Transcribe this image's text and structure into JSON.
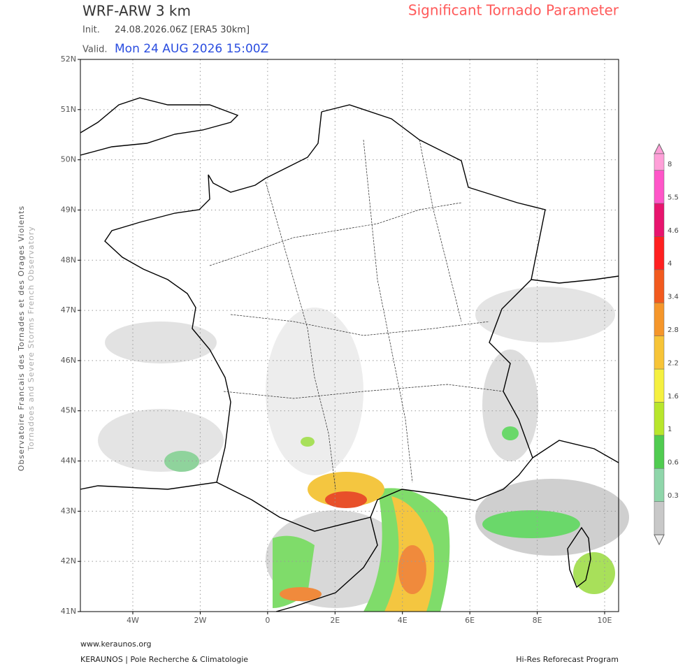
{
  "header": {
    "model": "WRF-ARW 3 km",
    "parameter": "Significant Tornado Parameter",
    "init_label": "Init.",
    "init": "24.08.2026.06Z [ERA5 30km]",
    "valid_label": "Valid.",
    "valid": "Mon 24 AUG 2026 15:00Z"
  },
  "map": {
    "lat_labels": [
      "52N",
      "51N",
      "50N",
      "49N",
      "48N",
      "47N",
      "46N",
      "45N",
      "44N",
      "43N",
      "42N",
      "41N"
    ],
    "lon_labels": [
      "4W",
      "2W",
      "0",
      "2E",
      "4E",
      "6E",
      "8E",
      "10E"
    ]
  },
  "colorbar": {
    "labels": [
      8,
      5.5,
      4.6,
      4,
      3.4,
      2.8,
      2.2,
      1.6,
      1,
      0.6,
      0.3
    ]
  },
  "side": {
    "line1": "Observatoire Francais des Tornades et des Orages Violents",
    "line2": "Tornadoes and Severe Storms French Observatory"
  },
  "footer": {
    "site": "www.keraunos.org",
    "org": "KERAUNOS | Pole Recherche & Climatologie",
    "program": "Hi-Res Reforecast Program"
  }
}
